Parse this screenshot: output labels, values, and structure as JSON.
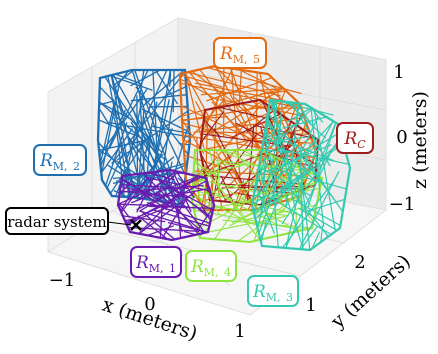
{
  "chart_data": {
    "type": "3d-wireframe",
    "axes": {
      "x": {
        "label": "x (meters)",
        "ticks": [
          -1,
          0,
          1
        ],
        "tick_labels": [
          "−1",
          "0",
          "1"
        ]
      },
      "y": {
        "label": "y (meters)",
        "ticks": [
          1,
          2
        ],
        "tick_labels": [
          "1",
          "2"
        ]
      },
      "z": {
        "label": "z (meters)",
        "ticks": [
          -1,
          0,
          1
        ],
        "tick_labels": [
          "−1",
          "0",
          "1"
        ]
      }
    },
    "grid": true,
    "regions": [
      {
        "id": "RM2",
        "name": "R_{M,2}",
        "color": "#1f6fb0"
      },
      {
        "id": "RM5",
        "name": "R_{M,5}",
        "color": "#e36b12"
      },
      {
        "id": "RC",
        "name": "R_C",
        "color": "#a01c1c"
      },
      {
        "id": "RM4",
        "name": "R_{M,4}",
        "color": "#8ee53f"
      },
      {
        "id": "RM3",
        "name": "R_{M,3}",
        "color": "#33c9b0"
      },
      {
        "id": "RM1",
        "name": "R_{M,1}",
        "color": "#6a1bb0"
      }
    ],
    "annotations": [
      {
        "text": "radar system",
        "marker": "x",
        "color": "#000000"
      }
    ]
  }
}
